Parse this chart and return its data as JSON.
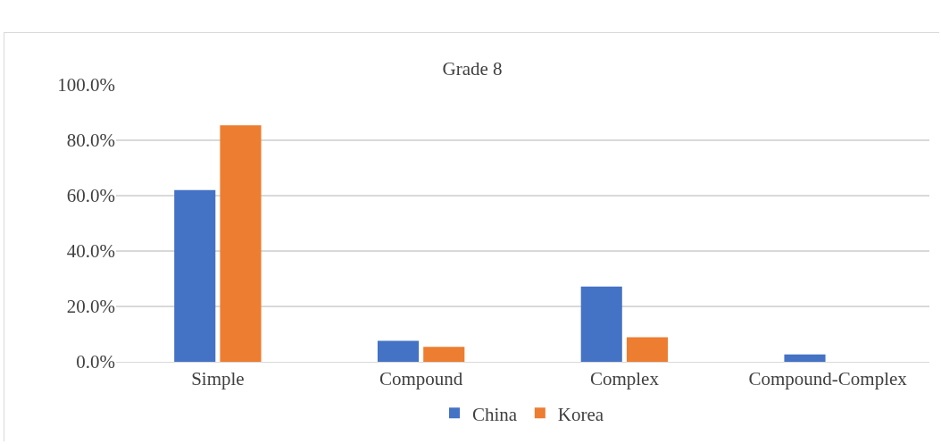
{
  "chart_data": {
    "type": "bar",
    "title": "Grade 8",
    "categories": [
      "Simple",
      "Compound",
      "Complex",
      "Compound-Complex"
    ],
    "series": [
      {
        "name": "China",
        "color": "#4472c4",
        "values": [
          62.0,
          7.6,
          27.2,
          2.7
        ]
      },
      {
        "name": "Korea",
        "color": "#ed7d31",
        "values": [
          85.4,
          5.4,
          8.9,
          0
        ]
      }
    ],
    "ylim": [
      0,
      100
    ],
    "yticks": [
      {
        "value": 0,
        "label": "0.0%"
      },
      {
        "value": 20,
        "label": "20.0%"
      },
      {
        "value": 40,
        "label": "40.0%"
      },
      {
        "value": 60,
        "label": "60.0%"
      },
      {
        "value": 80,
        "label": "80.0%"
      },
      {
        "value": 100,
        "label": "100.0%"
      }
    ],
    "grid": "y",
    "legend": "bottom"
  }
}
